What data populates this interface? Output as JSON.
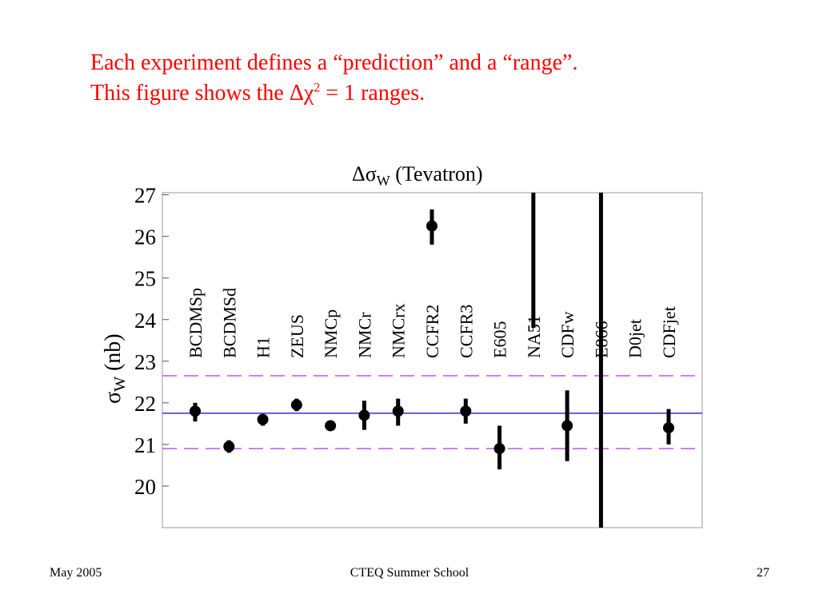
{
  "slide": {
    "heading_line1": "Each experiment defines a “prediction” and a “range”.",
    "heading_line2_prefix": "This figure shows the Δχ",
    "heading_line2_sup": "2",
    "heading_line2_suffix": " = 1 ranges."
  },
  "footer": {
    "date": "May 2005",
    "event": "CTEQ Summer School",
    "page_number": "27"
  },
  "chart_data": {
    "type": "scatter",
    "title": "Δσ_W (Tevatron)",
    "title_main": "Δσ",
    "title_sub": "W",
    "title_rest": " (Tevatron)",
    "ylabel_main": "σ",
    "ylabel_sub": "W",
    "ylabel_rest": " (nb)",
    "ylim": [
      19,
      27.05
    ],
    "yticks": [
      20,
      21,
      22,
      23,
      24,
      25,
      26,
      27
    ],
    "central_value": 21.75,
    "range_low": 20.9,
    "range_high": 22.65,
    "colors": {
      "central_line": "#3333cc",
      "range_lines": "#bb55ee",
      "points": "#000000",
      "frame": "#999999"
    },
    "points": [
      {
        "name": "BCDMSp",
        "y": 21.8,
        "low": 21.55,
        "high": 22.0
      },
      {
        "name": "BCDMSd",
        "y": 20.95,
        "low": 20.8,
        "high": 21.1
      },
      {
        "name": "H1",
        "y": 21.6,
        "low": 21.45,
        "high": 21.7
      },
      {
        "name": "ZEUS",
        "y": 21.95,
        "low": 21.8,
        "high": 22.1
      },
      {
        "name": "NMCp",
        "y": 21.45,
        "low": 21.38,
        "high": 21.52
      },
      {
        "name": "NMCr",
        "y": 21.7,
        "low": 21.35,
        "high": 22.05
      },
      {
        "name": "NMCrx",
        "y": 21.8,
        "low": 21.45,
        "high": 22.1
      },
      {
        "name": "CCFR2",
        "y": 26.25,
        "low": 25.8,
        "high": 26.65
      },
      {
        "name": "CCFR3",
        "y": 21.8,
        "low": 21.5,
        "high": 22.1
      },
      {
        "name": "E605",
        "y": 20.9,
        "low": 20.4,
        "high": 21.45
      },
      {
        "name": "NA51",
        "y": null,
        "low": 23.8,
        "high": 27.05
      },
      {
        "name": "CDFw",
        "y": 21.45,
        "low": 20.6,
        "high": 22.3
      },
      {
        "name": "E866",
        "y": null,
        "low": 19.0,
        "high": 27.05
      },
      {
        "name": "D0jet",
        "y": null,
        "low": null,
        "high": null
      },
      {
        "name": "CDFjet",
        "y": 21.4,
        "low": 21.0,
        "high": 21.85
      }
    ]
  }
}
